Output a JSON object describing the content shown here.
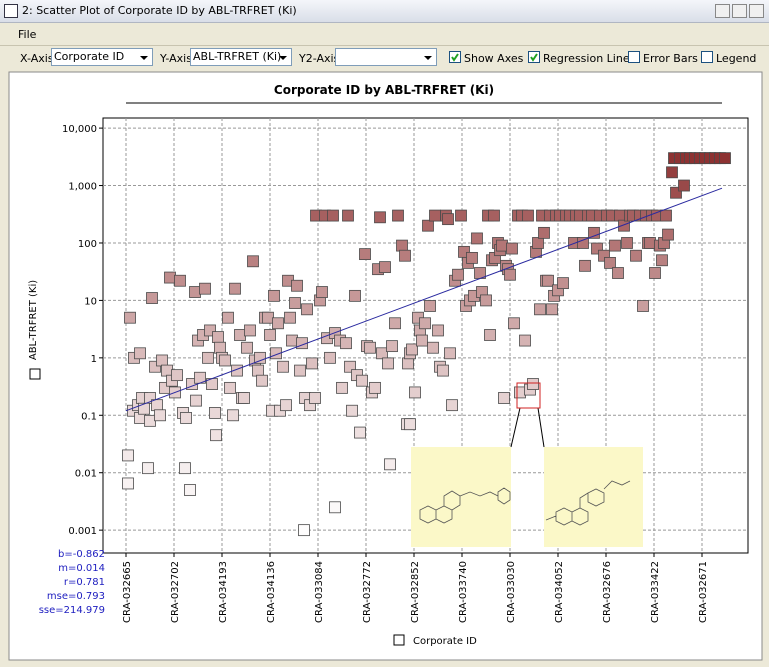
{
  "window": {
    "title": "2: Scatter Plot of Corporate ID by ABL-TRFRET (Ki)",
    "menu": [
      "File"
    ]
  },
  "toolbar": {
    "x_axis_label": "X-Axis",
    "x_axis_value": "Corporate ID",
    "y_axis_label": "Y-Axis",
    "y_axis_value": "ABL-TRFRET (Ki)",
    "y2_axis_label": "Y2-Axis",
    "checkboxes": [
      {
        "label": "Show Axes",
        "checked": true
      },
      {
        "label": "Regression Line",
        "checked": true
      },
      {
        "label": "Error Bars",
        "checked": false
      },
      {
        "label": "Legend",
        "checked": false
      }
    ]
  },
  "chart_data": {
    "type": "scatter",
    "title": "Corporate ID by ABL-TRFRET (Ki)",
    "x_label": "Corporate ID",
    "y_label": "ABL-TRFRET (Ki)",
    "log_y": true,
    "grid": true,
    "color_low": "#ffffff",
    "color_high": "#7a1010",
    "line_color": "#2a2aa0",
    "xlim": [
      -23,
      622
    ],
    "xticks": [
      {
        "value": 0,
        "label": "CRA-032665"
      },
      {
        "value": 48,
        "label": "CRA-032702"
      },
      {
        "value": 96,
        "label": "CRA-034193"
      },
      {
        "value": 144,
        "label": "CRA-034136"
      },
      {
        "value": 192,
        "label": "CRA-033084"
      },
      {
        "value": 240,
        "label": "CRA-032772"
      },
      {
        "value": 288,
        "label": "CRA-032852"
      },
      {
        "value": 336,
        "label": "CRA-033740"
      },
      {
        "value": 384,
        "label": "CRA-033030"
      },
      {
        "value": 432,
        "label": "CRA-034052"
      },
      {
        "value": 480,
        "label": "CRA-032676"
      },
      {
        "value": 528,
        "label": "CRA-033422"
      },
      {
        "value": 576,
        "label": "CRA-032671"
      }
    ],
    "ylim": [
      0.0004,
      15000
    ],
    "yticks": [
      {
        "value": 10000,
        "label": "10,000"
      },
      {
        "value": 1000,
        "label": "1,000"
      },
      100,
      10,
      1,
      0.1,
      0.01,
      0.001
    ],
    "x": [
      4,
      7,
      8,
      12,
      14,
      14,
      16,
      22,
      24,
      26,
      24,
      29,
      31,
      34,
      36,
      39,
      41,
      44,
      46,
      49,
      51,
      54,
      57,
      59,
      60,
      64,
      66,
      69,
      70,
      72,
      74,
      77,
      79,
      82,
      84,
      86,
      89,
      90,
      92,
      94,
      96,
      99,
      102,
      104,
      107,
      109,
      111,
      114,
      116,
      118,
      121,
      124,
      127,
      129,
      132,
      134,
      136,
      139,
      142,
      144,
      146,
      148,
      150,
      152,
      154,
      157,
      160,
      162,
      164,
      166,
      169,
      171,
      174,
      176,
      179,
      181,
      184,
      186,
      189,
      190,
      194,
      196,
      199,
      201,
      204,
      207,
      209,
      214,
      216,
      220,
      222,
      224,
      226,
      229,
      231,
      234,
      236,
      239,
      241,
      244,
      246,
      249,
      252,
      254,
      256,
      259,
      262,
      264,
      266,
      269,
      272,
      276,
      279,
      281,
      282,
      284,
      286,
      289,
      292,
      294,
      296,
      299,
      302,
      304,
      307,
      309,
      312,
      314,
      317,
      320,
      322,
      324,
      326,
      329,
      332,
      335,
      338,
      340,
      342,
      344,
      346,
      348,
      351,
      354,
      356,
      360,
      362,
      364,
      366,
      368,
      369,
      372,
      374,
      376,
      378,
      380,
      382,
      384,
      386,
      388,
      392,
      394,
      396,
      399,
      402,
      404,
      407,
      410,
      412,
      414,
      416,
      418,
      420,
      422,
      424,
      426,
      428,
      430,
      432,
      434,
      437,
      440,
      444,
      448,
      450,
      454,
      457,
      459,
      462,
      466,
      468,
      471,
      474,
      478,
      481,
      484,
      486,
      489,
      492,
      494,
      498,
      501,
      504,
      507,
      510,
      514,
      517,
      520,
      522,
      524,
      526,
      529,
      531,
      534,
      536,
      538,
      540,
      542,
      546,
      548,
      550,
      554,
      558,
      560,
      564,
      569,
      574,
      579,
      584,
      589,
      594,
      599,
      178,
      209,
      2,
      2,
      18,
      284
    ],
    "values": [
      5,
      0.12,
      1,
      0.15,
      1.2,
      0.09,
      0.2,
      0.012,
      0.08,
      11,
      0.2,
      0.7,
      0.15,
      0.1,
      0.9,
      0.3,
      0.6,
      25,
      0.4,
      0.25,
      0.5,
      22,
      0.11,
      0.012,
      0.09,
      0.005,
      0.35,
      14,
      0.18,
      2,
      0.45,
      2.5,
      16,
      1,
      3,
      0.35,
      0.11,
      0.045,
      2.3,
      1.5,
      1,
      0.9,
      5,
      0.3,
      0.1,
      16,
      0.6,
      2.5,
      0.2,
      0.2,
      1.5,
      3,
      48,
      0.9,
      0.6,
      1,
      0.4,
      5,
      5,
      2.5,
      0.12,
      12,
      1.2,
      4,
      0.12,
      0.7,
      0.15,
      22,
      5,
      2,
      9,
      18,
      0.6,
      1.8,
      0.2,
      7,
      0.15,
      0.8,
      0.2,
      300,
      10,
      14,
      300,
      2.2,
      1,
      300,
      2.7,
      2,
      0.3,
      1.8,
      300,
      0.7,
      0.12,
      12,
      0.5,
      0.05,
      0.4,
      64,
      1.6,
      1.5,
      0.25,
      0.3,
      35,
      280,
      1.2,
      38,
      0.8,
      0.014,
      1.6,
      4,
      300,
      90,
      60,
      0.07,
      0.8,
      1.2,
      1.4,
      0.25,
      5,
      3,
      2,
      4,
      200,
      8,
      1.5,
      300,
      3,
      0.7,
      0.6,
      300,
      260,
      1.2,
      0.15,
      22,
      28,
      300,
      70,
      8,
      45,
      10,
      55,
      12,
      120,
      30,
      14,
      10,
      300,
      2.5,
      50,
      300,
      55,
      100,
      75,
      90,
      0.2,
      40,
      35,
      28,
      80,
      4,
      300,
      0.25,
      300,
      2,
      300,
      0.28,
      0.35,
      70,
      100,
      7,
      300,
      150,
      22,
      22,
      300,
      7,
      12,
      300,
      15,
      300,
      20,
      300,
      300,
      100,
      300,
      300,
      100,
      40,
      300,
      300,
      150,
      80,
      300,
      60,
      300,
      45,
      300,
      90,
      30,
      300,
      200,
      100,
      300,
      300,
      60,
      300,
      8,
      300,
      100,
      100,
      300,
      30,
      300,
      90,
      50,
      100,
      300,
      140,
      1700,
      3000,
      750,
      3000,
      1000,
      3000,
      3000,
      3000,
      3000,
      3000,
      3000,
      3000,
      3000,
      3000,
      0.001,
      0.0025,
      0.02,
      0.0065,
      0.13,
      0.07
    ],
    "regression_line": {
      "x": [
        0,
        596
      ],
      "y": [
        0.12,
        900
      ]
    },
    "regression_stats": [
      "b=-0.862",
      "m=0.014",
      "r=0.781",
      "mse=0.793",
      "sse=214.979"
    ]
  }
}
